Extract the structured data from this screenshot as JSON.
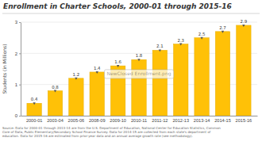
{
  "chart_data": {
    "type": "bar",
    "title": "Enrollment in Charter Schools, 2000-01 through 2015-16",
    "ylabel": "Students (in Millions)",
    "categories": [
      "2000-01",
      "2003-04",
      "2005-06",
      "2008-09",
      "2009-10",
      "2010-11",
      "2011-12",
      "2012-13",
      "2013-14",
      "2014-15",
      "2015-16"
    ],
    "values": [
      0.4,
      0.8,
      1.2,
      1.4,
      1.6,
      1.8,
      2.1,
      2.3,
      2.5,
      2.7,
      2.9
    ],
    "color": "#FFC107",
    "ylim": [
      0,
      3
    ],
    "yticks": [
      0,
      1,
      2,
      3
    ],
    "grid": true,
    "data_labels": true,
    "footnote": "Source: Data for 2000-01 through 2013-14 are from the U.S. Department of Education, National Center for Education Statistics, Common\nCore of Data, Public Elementary/Secondary School Finance Survey. Data for 2014-15 are collected from each state's department of\neducation. Data for 2015-16 are estimated from prior-year data and an annual average growth rate (see methodology).",
    "watermark": "NewClosed Enrollment.png"
  }
}
